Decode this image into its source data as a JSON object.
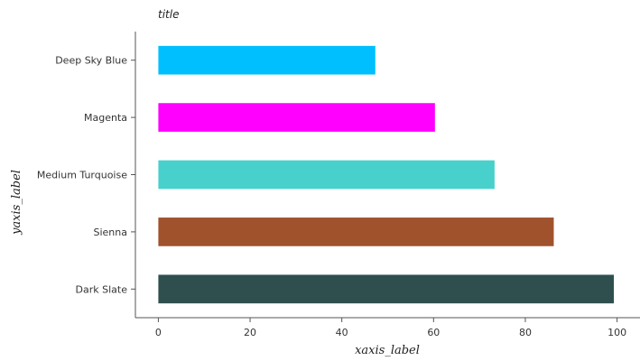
{
  "chart_data": {
    "type": "bar",
    "orientation": "horizontal",
    "title": "title",
    "xlabel": "xaxis_label",
    "ylabel": "yaxis_label",
    "categories": [
      "Dark Slate",
      "Sienna",
      "Medium Turquoise",
      "Magenta",
      "Deep Sky Blue"
    ],
    "values": [
      99.3,
      86.2,
      73.3,
      60.3,
      47.3
    ],
    "colors": [
      "#2F4F4F",
      "#A0522D",
      "#48D1CC",
      "#FF00FF",
      "#00BFFF"
    ],
    "xlim": [
      -5,
      105
    ],
    "xticks": [
      0,
      20,
      40,
      60,
      80,
      100
    ],
    "grid": false,
    "legend": "none"
  }
}
